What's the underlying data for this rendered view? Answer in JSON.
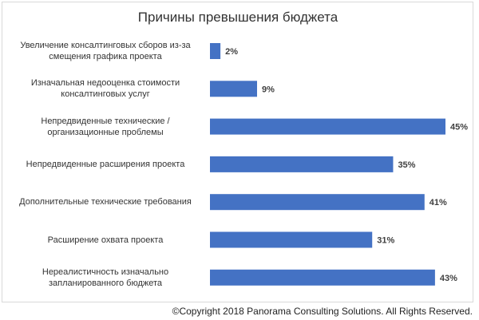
{
  "chart_data": {
    "type": "barh",
    "title": "Причины превышения бюджета",
    "categories": [
      "Увеличение консалтинговых сборов из-за смещения графика проекта",
      "Изначальная недооценка стоимости консалтинговых услуг",
      "Непредвиденные технические / организационные проблемы",
      "Непредвиденные расширения проекта",
      "Дополнительные технические требования",
      "Расширение охвата проекта",
      "Нереалистичность изначально запланированного бюджета"
    ],
    "values": [
      2,
      9,
      45,
      35,
      41,
      31,
      43
    ],
    "value_labels": [
      "2%",
      "9%",
      "45%",
      "35%",
      "41%",
      "31%",
      "43%"
    ],
    "color": "#4472c4",
    "copyright": "©Copyright 2018 Panorama Consulting Solutions.  All Rights Reserved."
  }
}
